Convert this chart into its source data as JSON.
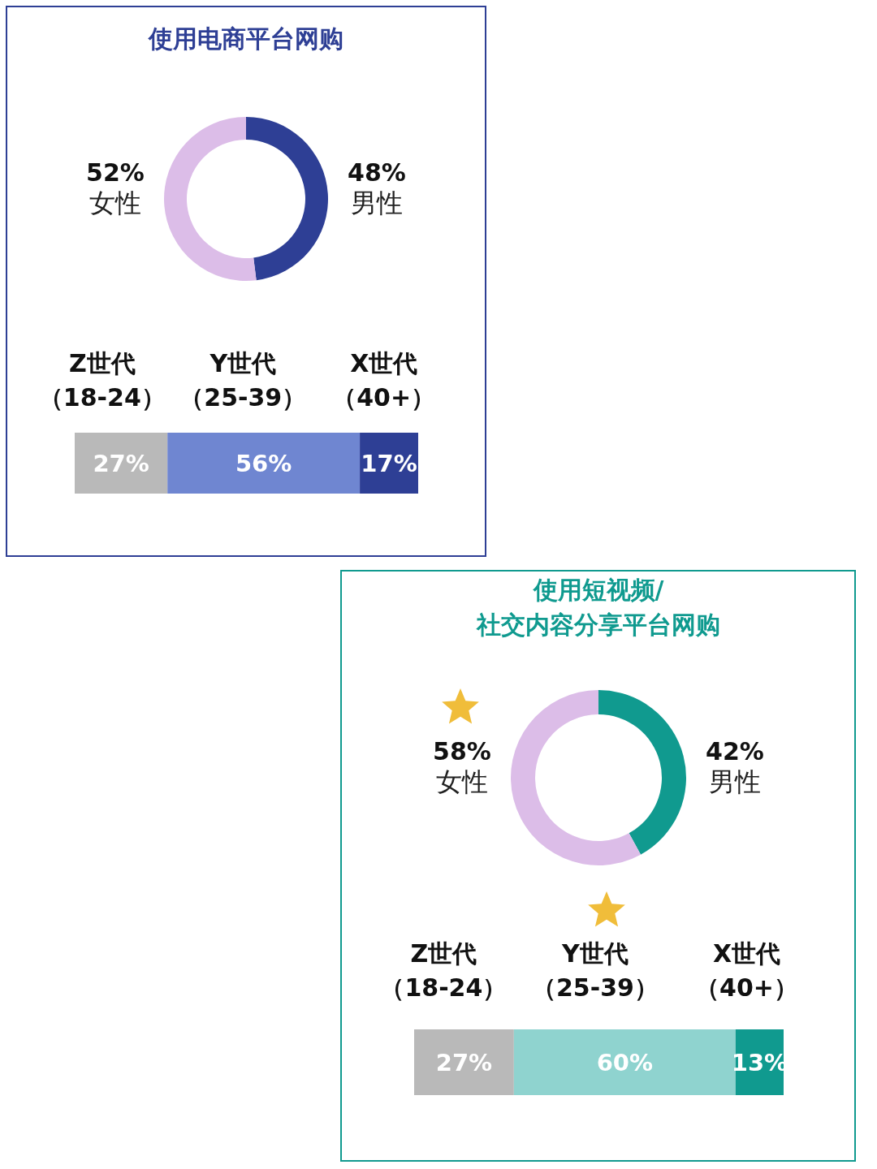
{
  "chart_data": [
    {
      "type": "donut",
      "title": "使用电商平台网购",
      "categories": [
        "男性",
        "女性"
      ],
      "values": [
        48,
        52
      ],
      "value_labels": [
        "48%",
        "52%"
      ],
      "colors": [
        "#2e3f95",
        "#dcbde8"
      ]
    },
    {
      "type": "bar",
      "orientation": "horizontal",
      "stacked": true,
      "categories": [
        null
      ],
      "series": [
        {
          "name": "Z世代（18-24）",
          "color": "#b9b9b9",
          "values": [
            27
          ],
          "value_labels": [
            "27%"
          ]
        },
        {
          "name": "Y世代（25-39）",
          "color": "#6f86d1",
          "values": [
            56
          ],
          "value_labels": [
            "56%"
          ]
        },
        {
          "name": "X世代（40+）",
          "color": "#2e3f95",
          "values": [
            17
          ],
          "value_labels": [
            "17%"
          ]
        }
      ]
    },
    {
      "type": "donut",
      "title": "使用短视频/\n社交内容分享平台网购",
      "categories": [
        "男性",
        "女性"
      ],
      "values": [
        42,
        58
      ],
      "value_labels": [
        "42%",
        "58%"
      ],
      "colors": [
        "#109a8f",
        "#dcbde8"
      ]
    },
    {
      "type": "bar",
      "orientation": "horizontal",
      "stacked": true,
      "categories": [
        null
      ],
      "series": [
        {
          "name": "Z世代（18-24）",
          "color": "#b9b9b9",
          "values": [
            27
          ],
          "value_labels": [
            "27%"
          ]
        },
        {
          "name": "Y世代（25-39）",
          "color": "#8fd3cf",
          "values": [
            60
          ],
          "value_labels": [
            "60%"
          ]
        },
        {
          "name": "X世代（40+）",
          "color": "#109a8f",
          "values": [
            13
          ],
          "value_labels": [
            "13%"
          ]
        }
      ]
    }
  ]
}
